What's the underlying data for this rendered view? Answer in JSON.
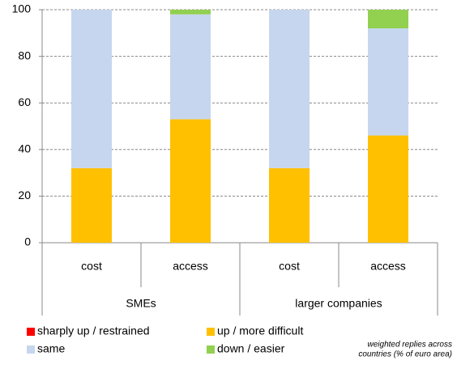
{
  "chart_data": {
    "type": "bar",
    "stacked": true,
    "categories": [
      "cost",
      "access",
      "cost",
      "access"
    ],
    "groups": [
      "SMEs",
      "larger companies"
    ],
    "series": [
      {
        "name": "sharply up / restrained",
        "color": "#ff0000",
        "values": [
          0,
          0,
          0,
          0
        ]
      },
      {
        "name": "up / more difficult",
        "color": "#ffc000",
        "values": [
          32,
          53,
          32,
          46
        ]
      },
      {
        "name": "same",
        "color": "#c6d6ee",
        "values": [
          68,
          45,
          68,
          46
        ]
      },
      {
        "name": "down / easier",
        "color": "#92d050",
        "values": [
          0,
          2,
          0,
          8
        ]
      }
    ],
    "ylim": [
      0,
      100
    ],
    "yticks": [
      0,
      20,
      40,
      60,
      80,
      100
    ],
    "grid": true,
    "note": [
      "weighted replies across",
      "countries (% of  euro area)"
    ]
  }
}
